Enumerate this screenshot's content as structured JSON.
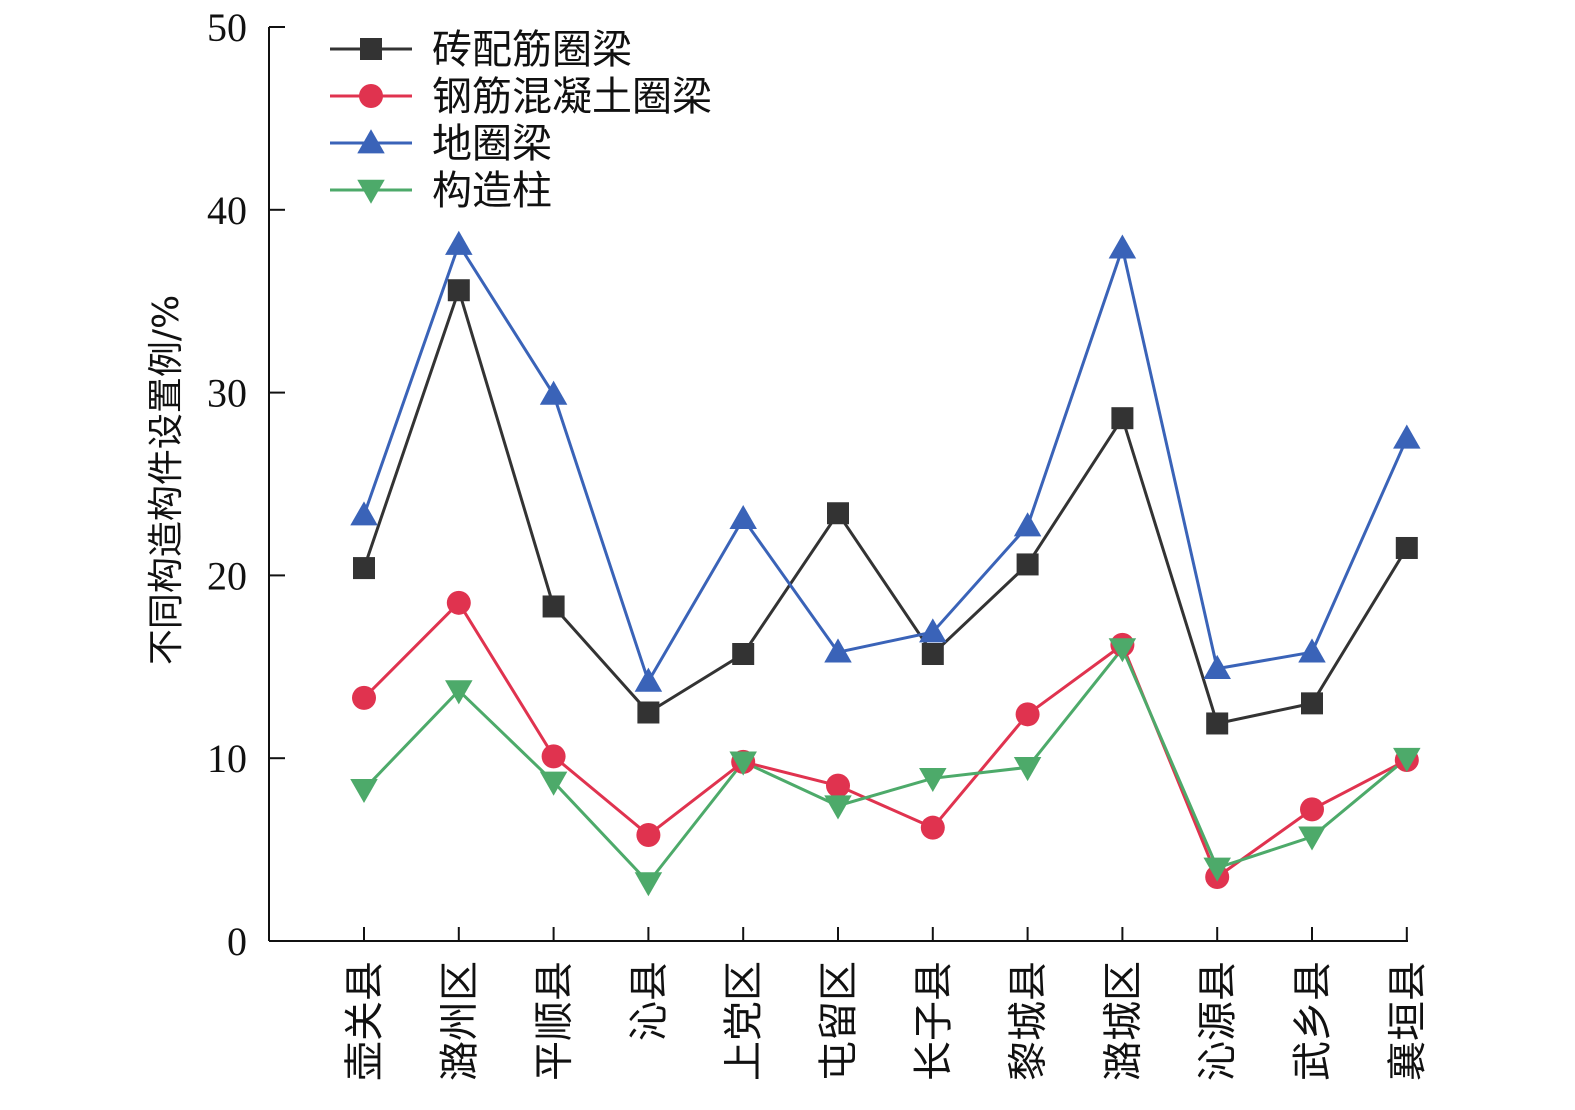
{
  "chart_data": {
    "type": "line",
    "ylabel": "不同构造构件设置例/%",
    "xlabel": "",
    "ylim": [
      0,
      50
    ],
    "yticks": [
      0,
      10,
      20,
      30,
      40,
      50
    ],
    "categories": [
      "壶关县",
      "潞州区",
      "平顺县",
      "沁县",
      "上党区",
      "屯留区",
      "长子县",
      "黎城县",
      "潞城区",
      "沁源县",
      "武乡县",
      "襄垣县"
    ],
    "legend_position": "top-left",
    "grid": false,
    "series": [
      {
        "name": "砖配筋圈梁",
        "color": "#333333",
        "marker": "square",
        "values": [
          20.4,
          35.6,
          18.3,
          12.5,
          15.7,
          23.4,
          15.7,
          20.6,
          28.6,
          11.9,
          13.0,
          21.5
        ]
      },
      {
        "name": "钢筋混凝土圈梁",
        "color": "#e0334f",
        "marker": "circle",
        "values": [
          13.3,
          18.5,
          10.1,
          5.8,
          9.8,
          8.5,
          6.2,
          12.4,
          16.2,
          3.5,
          7.2,
          9.9
        ]
      },
      {
        "name": "地圈梁",
        "color": "#3a63b8",
        "marker": "triangle-up",
        "values": [
          23.3,
          38.1,
          29.9,
          14.2,
          23.1,
          15.8,
          16.9,
          22.7,
          37.9,
          14.9,
          15.8,
          27.5
        ]
      },
      {
        "name": "构造柱",
        "color": "#4daa6a",
        "marker": "triangle-down",
        "values": [
          8.3,
          13.7,
          8.7,
          3.2,
          9.8,
          7.4,
          8.9,
          9.5,
          16.0,
          4.0,
          5.7,
          10.0
        ]
      }
    ]
  }
}
